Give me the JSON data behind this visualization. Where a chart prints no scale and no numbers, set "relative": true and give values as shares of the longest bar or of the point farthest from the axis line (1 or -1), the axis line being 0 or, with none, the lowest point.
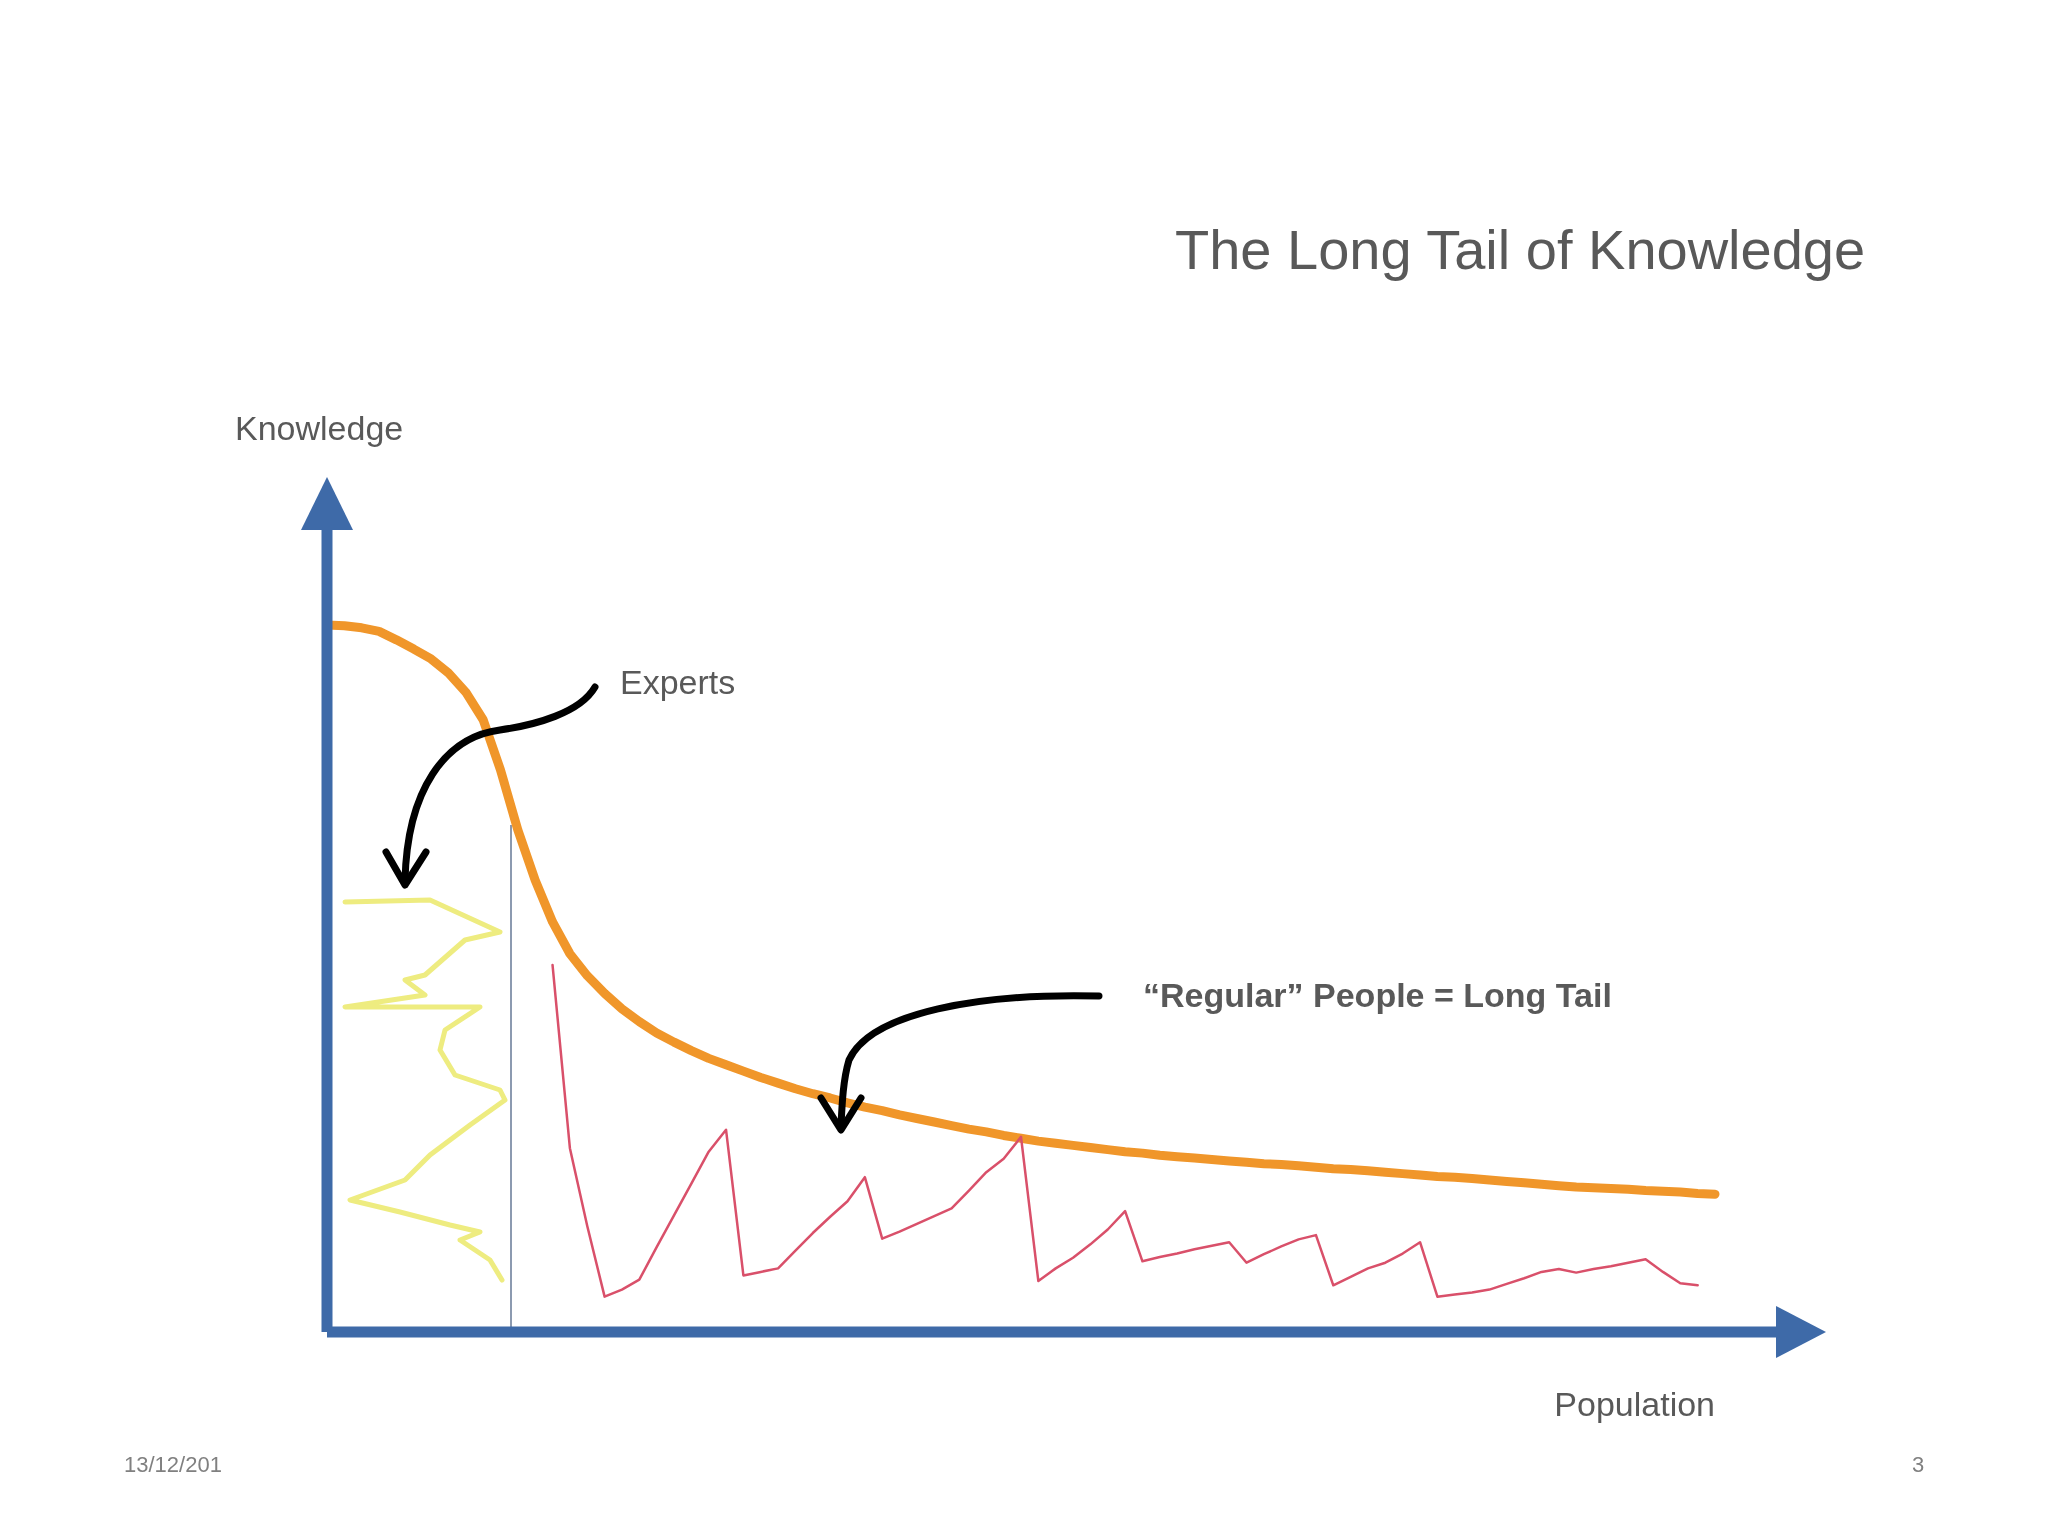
{
  "chart_data": {
    "type": "line",
    "title": "The Long Tail of Knowledge",
    "xlabel": "Population",
    "relative": true,
    "tick_labels": false,
    "marker": "none",
    "line_style": "solid",
    "categories": [
      null,
      null,
      null,
      null,
      null,
      null,
      null,
      null,
      null,
      null,
      null,
      null,
      null,
      null,
      null,
      null,
      null,
      null,
      null,
      null,
      null,
      null,
      null,
      null,
      null,
      null,
      null,
      null,
      null,
      null,
      null,
      null,
      null,
      null,
      null,
      null,
      null,
      null,
      null,
      null,
      null,
      null,
      null,
      null,
      null,
      null,
      null,
      null,
      null,
      null,
      null,
      null,
      null,
      null,
      null,
      null,
      null,
      null,
      null,
      null,
      null,
      null,
      null,
      null,
      null,
      null,
      null,
      null,
      null,
      null,
      null,
      null,
      null,
      null,
      null,
      null,
      null,
      null,
      null,
      null,
      null
    ],
    "series": [
      {
        "color": "#f0962a",
        "values": [
          1.0,
          0.999,
          0.996,
          0.991,
          0.979,
          0.966,
          0.952,
          0.932,
          0.905,
          0.866,
          0.795,
          0.71,
          0.639,
          0.58,
          0.535,
          0.504,
          0.479,
          0.457,
          0.439,
          0.423,
          0.41,
          0.398,
          0.387,
          0.378,
          0.369,
          0.36,
          0.352,
          0.344,
          0.337,
          0.331,
          0.324,
          0.318,
          0.313,
          0.307,
          0.302,
          0.297,
          0.292,
          0.287,
          0.283,
          0.278,
          0.274,
          0.27,
          0.267,
          0.264,
          0.261,
          0.258,
          0.255,
          0.253,
          0.25,
          0.248,
          0.246,
          0.244,
          0.242,
          0.24,
          0.238,
          0.237,
          0.235,
          0.233,
          0.231,
          0.23,
          0.228,
          0.226,
          0.224,
          0.222,
          0.22,
          0.219,
          0.217,
          0.215,
          0.213,
          0.211,
          0.209,
          0.207,
          0.205,
          0.204,
          0.203,
          0.202,
          0.2,
          0.199,
          0.198,
          0.196,
          0.195
        ]
      },
      {
        "color": "#d9506a",
        "values": [
          null,
          null,
          null,
          null,
          null,
          null,
          null,
          null,
          null,
          null,
          null,
          null,
          null,
          0.519,
          0.26,
          0.15,
          0.05,
          0.06,
          0.074,
          0.12,
          0.165,
          0.21,
          0.255,
          0.286,
          0.08,
          0.085,
          0.09,
          0.115,
          0.14,
          0.163,
          0.185,
          0.219,
          0.132,
          0.142,
          0.153,
          0.164,
          0.175,
          0.2,
          0.226,
          0.245,
          0.276,
          0.072,
          0.09,
          0.105,
          0.124,
          0.145,
          0.171,
          0.1,
          0.106,
          0.111,
          0.117,
          0.122,
          0.127,
          0.098,
          0.11,
          0.121,
          0.131,
          0.137,
          0.066,
          0.078,
          0.09,
          0.098,
          0.111,
          0.127,
          0.05,
          0.053,
          0.056,
          0.06,
          0.068,
          0.076,
          0.085,
          0.089,
          0.084,
          0.089,
          0.093,
          0.098,
          0.103,
          0.085,
          0.069,
          0.066,
          null
        ]
      }
    ],
    "annotations": [
      "Knowledge",
      "Experts",
      "“Regular” People = Long Tail",
      "13/12/201",
      "3"
    ]
  }
}
